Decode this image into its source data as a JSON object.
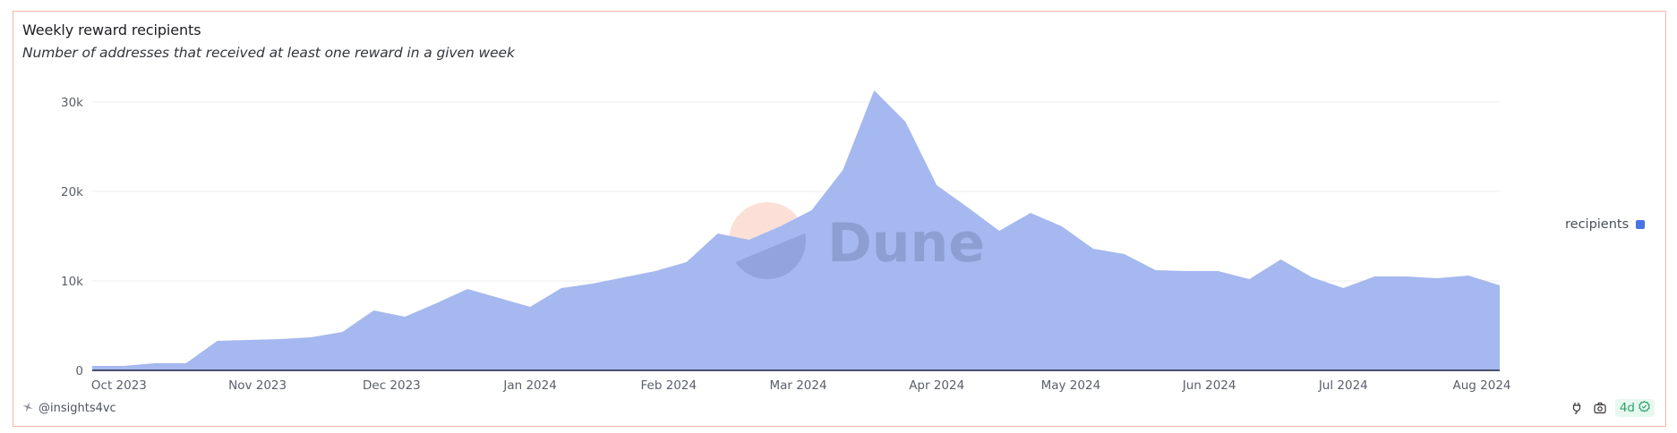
{
  "header": {
    "title": "Weekly reward recipients",
    "subtitle": "Number of addresses that received at least one reward in a given week"
  },
  "legend": {
    "label": "recipients",
    "color": "#4b74e3"
  },
  "footer": {
    "author": "@insights4vc",
    "freshness_badge": "4d",
    "icons": [
      "plug-icon",
      "camera-icon",
      "check-badge-icon"
    ]
  },
  "watermark": {
    "text": "Dune"
  },
  "colors": {
    "area_fill": "#a5b8ef",
    "baseline": "#1f2340",
    "grid": "#eeeeef",
    "border": "#f0b8a6",
    "badge_bg": "#e6f8ef",
    "badge_fg": "#2ea36a"
  },
  "chart_data": {
    "type": "area",
    "title": "Weekly reward recipients",
    "subtitle": "Number of addresses that received at least one reward in a given week",
    "xlabel": "",
    "ylabel": "",
    "ylim": [
      0,
      30000
    ],
    "yticks": [
      0,
      10000,
      20000,
      30000
    ],
    "ytick_labels": [
      "0",
      "10k",
      "20k",
      "30k"
    ],
    "xtick_labels": [
      "Oct 2023",
      "Nov 2023",
      "Dec 2023",
      "Jan 2024",
      "Feb 2024",
      "Mar 2024",
      "Apr 2024",
      "May 2024",
      "Jun 2024",
      "Jul 2024",
      "Aug 2024"
    ],
    "xtick_dates": [
      "2023-10-01",
      "2023-11-01",
      "2023-12-01",
      "2024-01-01",
      "2024-02-01",
      "2024-03-01",
      "2024-04-01",
      "2024-05-01",
      "2024-06-01",
      "2024-07-01",
      "2024-08-01"
    ],
    "grid": true,
    "legend_position": "right",
    "x": [
      "2023-09-25",
      "2023-10-02",
      "2023-10-09",
      "2023-10-16",
      "2023-10-23",
      "2023-10-30",
      "2023-11-06",
      "2023-11-13",
      "2023-11-20",
      "2023-11-27",
      "2023-12-04",
      "2023-12-11",
      "2023-12-18",
      "2023-12-25",
      "2024-01-01",
      "2024-01-08",
      "2024-01-15",
      "2024-01-22",
      "2024-01-29",
      "2024-02-05",
      "2024-02-12",
      "2024-02-19",
      "2024-02-26",
      "2024-03-04",
      "2024-03-11",
      "2024-03-18",
      "2024-03-25",
      "2024-04-01",
      "2024-04-08",
      "2024-04-15",
      "2024-04-22",
      "2024-04-29",
      "2024-05-06",
      "2024-05-13",
      "2024-05-20",
      "2024-05-27",
      "2024-06-03",
      "2024-06-10",
      "2024-06-17",
      "2024-06-24",
      "2024-07-01",
      "2024-07-08",
      "2024-07-15",
      "2024-07-22",
      "2024-07-29",
      "2024-08-05"
    ],
    "series": [
      {
        "name": "recipients",
        "color": "#4b74e3",
        "values": [
          500,
          500,
          800,
          800,
          3300,
          3400,
          3500,
          3700,
          4300,
          6700,
          6000,
          7500,
          9100,
          8100,
          7100,
          9200,
          9700,
          10400,
          11100,
          12100,
          15300,
          14600,
          16100,
          17900,
          22400,
          31300,
          27800,
          20700,
          18200,
          15600,
          17600,
          16100,
          13600,
          13000,
          11200,
          11100,
          11100,
          10200,
          12400,
          10400,
          9200,
          10500,
          10500,
          10300,
          10600,
          9500
        ]
      }
    ]
  }
}
